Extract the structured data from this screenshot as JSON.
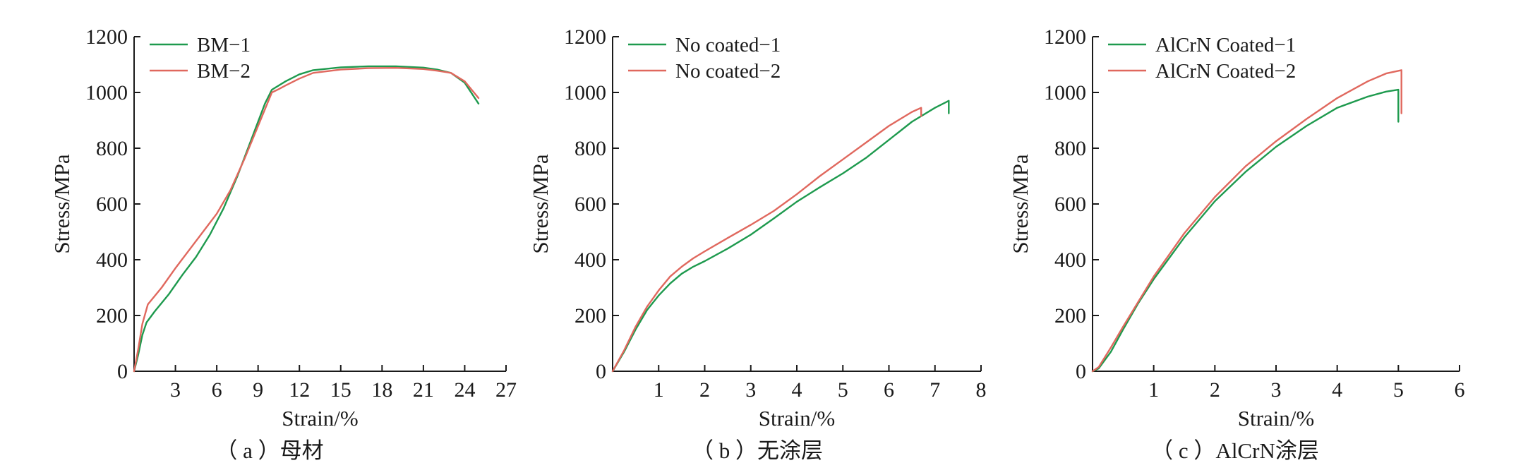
{
  "colors": {
    "green": "#1e9a4e",
    "red": "#e0685e",
    "axis": "#1a1a1a"
  },
  "chart_data": [
    {
      "type": "line",
      "caption": "（ a ）母材",
      "xlabel": "Strain/%",
      "ylabel": "Stress/MPa",
      "xlim": [
        0,
        27
      ],
      "ylim": [
        0,
        1200
      ],
      "xticks": [
        3,
        6,
        9,
        12,
        15,
        18,
        21,
        24,
        27
      ],
      "yticks": [
        0,
        200,
        400,
        600,
        800,
        1000,
        1200
      ],
      "legend_position": "top-left",
      "series": [
        {
          "name": "BM−1",
          "color": "#1e9a4e",
          "points": [
            [
              0,
              0
            ],
            [
              0.3,
              60
            ],
            [
              0.6,
              130
            ],
            [
              0.9,
              175
            ],
            [
              1.5,
              215
            ],
            [
              2.5,
              275
            ],
            [
              3.5,
              345
            ],
            [
              4.5,
              410
            ],
            [
              5.5,
              490
            ],
            [
              6.5,
              585
            ],
            [
              7.5,
              700
            ],
            [
              8.5,
              830
            ],
            [
              9.5,
              960
            ],
            [
              10,
              1010
            ],
            [
              11,
              1040
            ],
            [
              12,
              1065
            ],
            [
              13,
              1080
            ],
            [
              15,
              1090
            ],
            [
              17,
              1094
            ],
            [
              19,
              1094
            ],
            [
              21,
              1089
            ],
            [
              22,
              1082
            ],
            [
              23,
              1070
            ],
            [
              24,
              1035
            ],
            [
              25,
              960
            ]
          ]
        },
        {
          "name": "BM−2",
          "color": "#e0685e",
          "points": [
            [
              0,
              0
            ],
            [
              0.3,
              80
            ],
            [
              0.6,
              170
            ],
            [
              1,
              240
            ],
            [
              2,
              300
            ],
            [
              3,
              370
            ],
            [
              4,
              435
            ],
            [
              5,
              500
            ],
            [
              6,
              565
            ],
            [
              7,
              650
            ],
            [
              8,
              760
            ],
            [
              9,
              880
            ],
            [
              10,
              1000
            ],
            [
              10.5,
              1012
            ],
            [
              11,
              1025
            ],
            [
              12,
              1050
            ],
            [
              13,
              1070
            ],
            [
              15,
              1082
            ],
            [
              17,
              1087
            ],
            [
              19,
              1088
            ],
            [
              21,
              1084
            ],
            [
              22,
              1078
            ],
            [
              23,
              1070
            ],
            [
              24,
              1040
            ],
            [
              25,
              980
            ]
          ]
        }
      ]
    },
    {
      "type": "line",
      "caption": "（ b ）无涂层",
      "xlabel": "Strain/%",
      "ylabel": "Stress/MPa",
      "xlim": [
        0,
        8
      ],
      "ylim": [
        0,
        1200
      ],
      "xticks": [
        1,
        2,
        3,
        4,
        5,
        6,
        7,
        8
      ],
      "yticks": [
        0,
        200,
        400,
        600,
        800,
        1000,
        1200
      ],
      "legend_position": "top-left",
      "series": [
        {
          "name": "No coated−1",
          "color": "#1e9a4e",
          "points": [
            [
              0,
              0
            ],
            [
              0.25,
              70
            ],
            [
              0.5,
              150
            ],
            [
              0.75,
              220
            ],
            [
              1,
              272
            ],
            [
              1.25,
              315
            ],
            [
              1.5,
              350
            ],
            [
              1.75,
              375
            ],
            [
              2,
              395
            ],
            [
              2.5,
              440
            ],
            [
              3,
              490
            ],
            [
              3.5,
              548
            ],
            [
              4,
              608
            ],
            [
              4.5,
              660
            ],
            [
              5,
              710
            ],
            [
              5.5,
              765
            ],
            [
              6,
              830
            ],
            [
              6.5,
              895
            ],
            [
              7,
              945
            ],
            [
              7.3,
              970
            ],
            [
              7.3,
              925
            ]
          ]
        },
        {
          "name": "No coated−2",
          "color": "#e0685e",
          "points": [
            [
              0,
              0
            ],
            [
              0.25,
              75
            ],
            [
              0.5,
              160
            ],
            [
              0.75,
              232
            ],
            [
              1,
              290
            ],
            [
              1.25,
              340
            ],
            [
              1.5,
              375
            ],
            [
              1.75,
              405
            ],
            [
              2,
              430
            ],
            [
              2.5,
              478
            ],
            [
              3,
              525
            ],
            [
              3.5,
              575
            ],
            [
              4,
              635
            ],
            [
              4.5,
              700
            ],
            [
              5,
              760
            ],
            [
              5.5,
              820
            ],
            [
              6,
              880
            ],
            [
              6.5,
              930
            ],
            [
              6.7,
              945
            ],
            [
              6.7,
              915
            ]
          ]
        }
      ]
    },
    {
      "type": "line",
      "caption": "（ c ）AlCrN涂层",
      "xlabel": "Strain/%",
      "ylabel": "Stress/MPa",
      "xlim": [
        0,
        6
      ],
      "ylim": [
        0,
        1200
      ],
      "xticks": [
        1,
        2,
        3,
        4,
        5,
        6
      ],
      "yticks": [
        0,
        200,
        400,
        600,
        800,
        1000,
        1200
      ],
      "legend_position": "top-left",
      "series": [
        {
          "name": "AlCrN Coated−1",
          "color": "#1e9a4e",
          "points": [
            [
              0,
              0
            ],
            [
              0.1,
              10
            ],
            [
              0.3,
              70
            ],
            [
              0.5,
              150
            ],
            [
              0.75,
              245
            ],
            [
              1,
              330
            ],
            [
              1.5,
              480
            ],
            [
              2,
              610
            ],
            [
              2.5,
              715
            ],
            [
              3,
              805
            ],
            [
              3.5,
              880
            ],
            [
              4,
              945
            ],
            [
              4.5,
              985
            ],
            [
              4.8,
              1003
            ],
            [
              5,
              1010
            ],
            [
              5,
              895
            ]
          ]
        },
        {
          "name": "AlCrN Coated−2",
          "color": "#e0685e",
          "points": [
            [
              0,
              0
            ],
            [
              0.1,
              15
            ],
            [
              0.3,
              85
            ],
            [
              0.5,
              160
            ],
            [
              0.75,
              250
            ],
            [
              1,
              340
            ],
            [
              1.5,
              495
            ],
            [
              2,
              625
            ],
            [
              2.5,
              735
            ],
            [
              3,
              825
            ],
            [
              3.5,
              905
            ],
            [
              4,
              980
            ],
            [
              4.5,
              1040
            ],
            [
              4.8,
              1068
            ],
            [
              5.05,
              1080
            ],
            [
              5.05,
              925
            ]
          ]
        }
      ]
    }
  ]
}
